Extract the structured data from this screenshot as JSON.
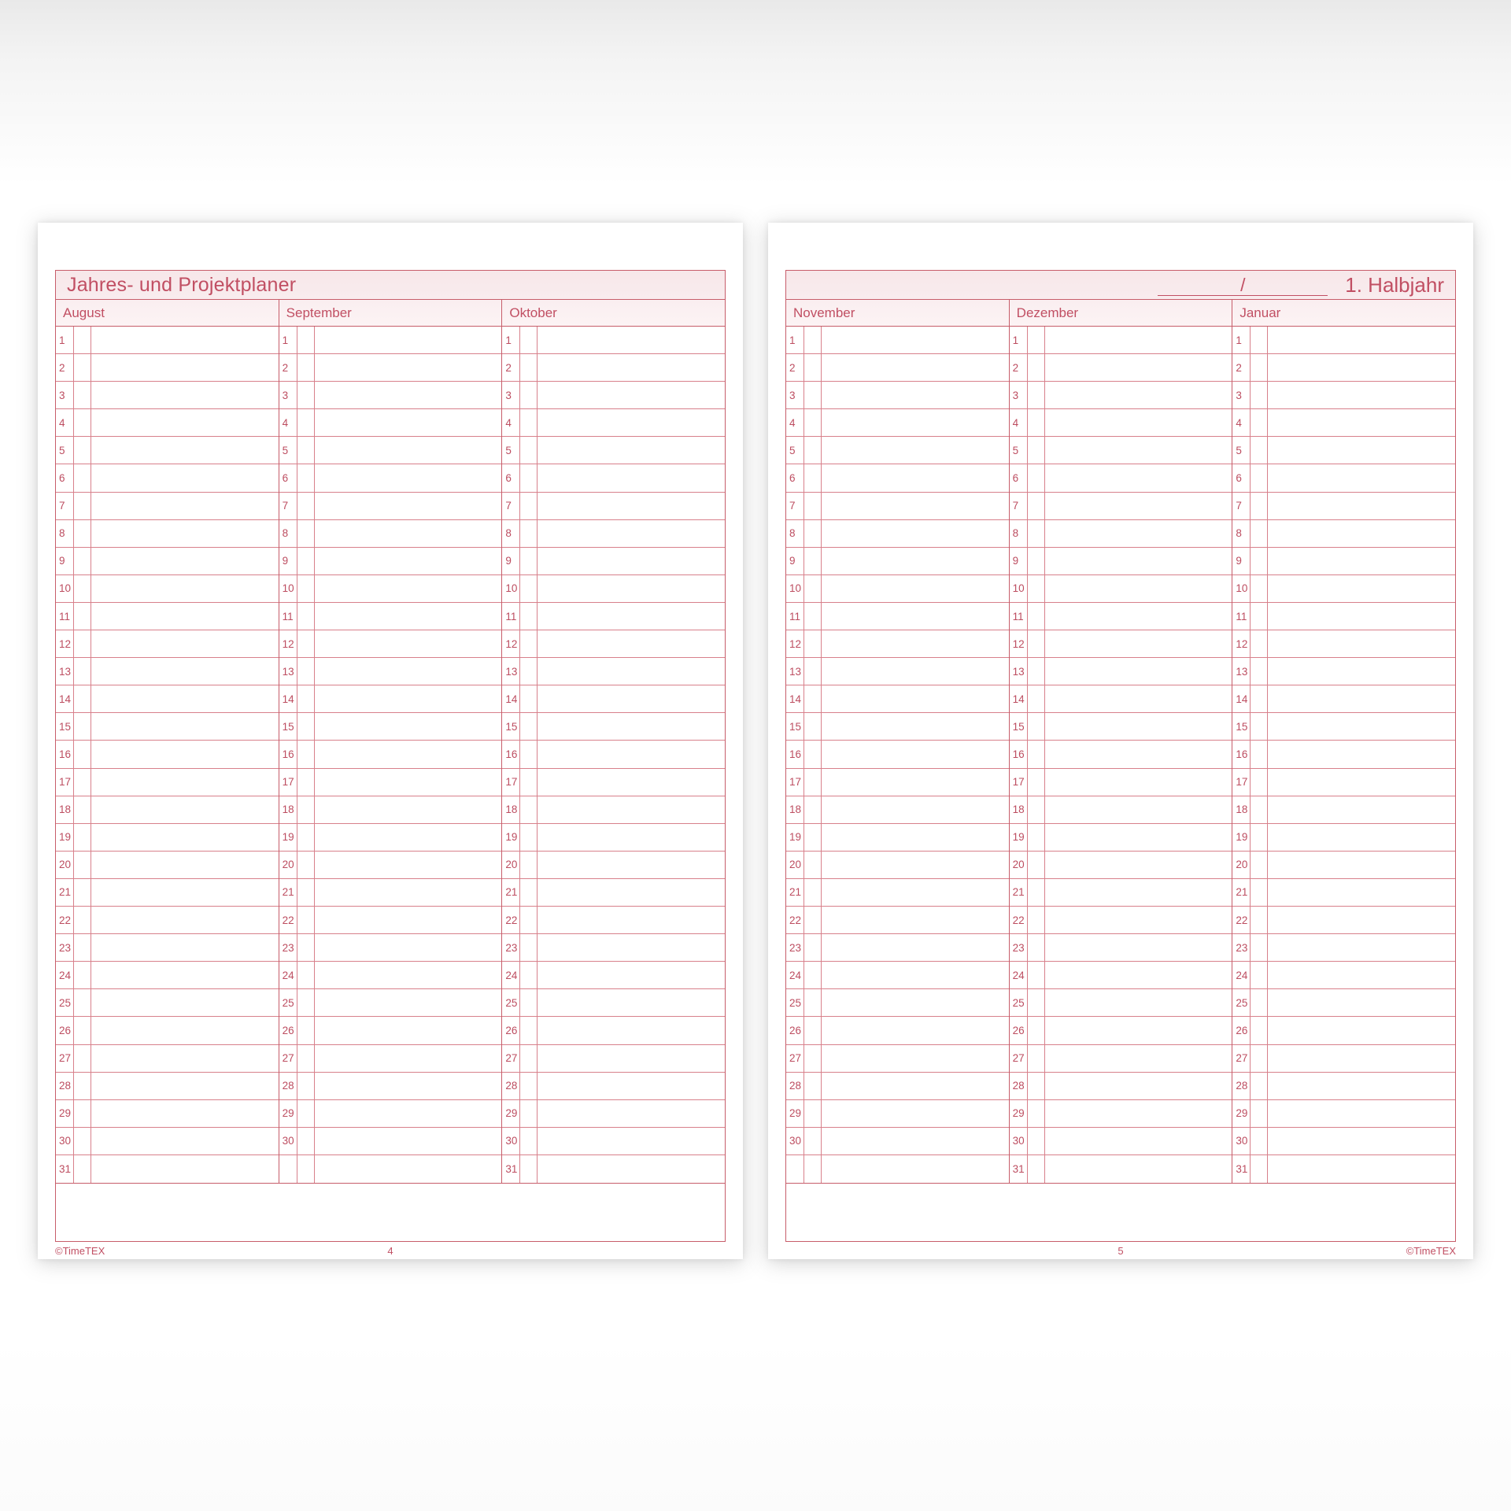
{
  "day_rows": 31,
  "pages": [
    {
      "side": "left",
      "title": "Jahres- und Projektplaner",
      "months": [
        {
          "name": "August",
          "days": 31
        },
        {
          "name": "September",
          "days": 30
        },
        {
          "name": "Oktober",
          "days": 31
        }
      ],
      "footer_copyright": "©TimeTEX",
      "page_number": "4"
    },
    {
      "side": "right",
      "year_separator": "/",
      "halbjahr_label": "1. Halbjahr",
      "months": [
        {
          "name": "November",
          "days": 30
        },
        {
          "name": "Dezember",
          "days": 31
        },
        {
          "name": "Januar",
          "days": 31
        }
      ],
      "footer_copyright": "©TimeTEX",
      "page_number": "5"
    }
  ],
  "colors": {
    "accent_text": "#c14f63",
    "grid_line": "#d8808b",
    "grid_line_strong": "#c75d6a",
    "titlebar_background": "#f8e9ea",
    "monthbar_background": "#fbf1f2"
  }
}
